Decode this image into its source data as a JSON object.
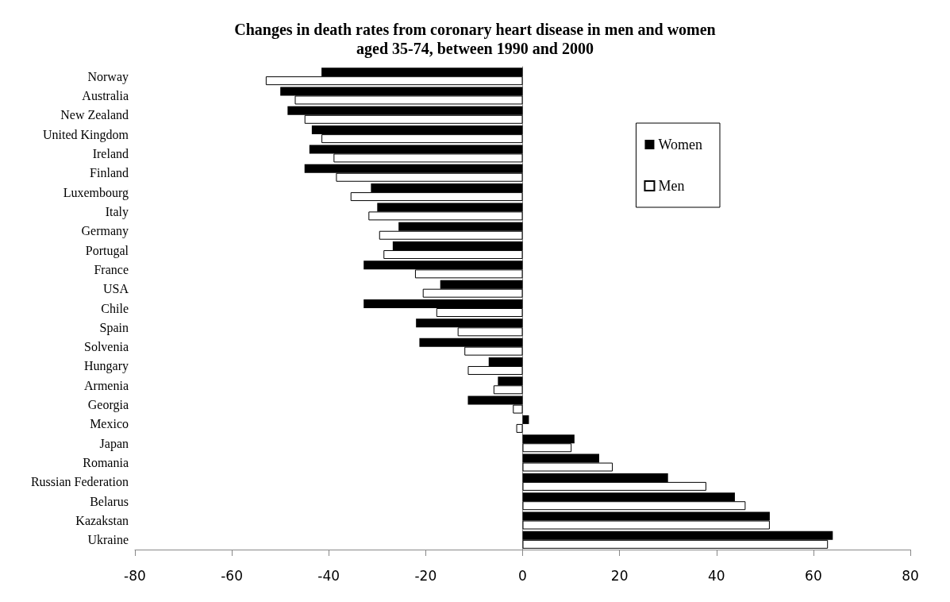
{
  "chart_data": {
    "type": "bar",
    "orientation": "horizontal",
    "title": "Changes in death rates from coronary heart disease in men and women\naged 35-74, between 1990 and 2000",
    "categories": [
      "Norway",
      "Australia",
      "New Zealand",
      "United Kingdom",
      "Ireland",
      "Finland",
      "Luxembourg",
      "Italy",
      "Germany",
      "Portugal",
      "France",
      "USA",
      "Chile",
      "Spain",
      "Solvenia",
      "Hungary",
      "Armenia",
      "Georgia",
      "Mexico",
      "Japan",
      "Romania",
      "Russian Federation",
      "Belarus",
      "Kazakstan",
      "Ukraine"
    ],
    "series": [
      {
        "name": "Women",
        "color": "#000000",
        "values": [
          -41.5,
          -50,
          -48.5,
          -43.5,
          -44,
          -45,
          -31.3,
          -30,
          -25.6,
          -26.8,
          -32.8,
          -17,
          -32.8,
          -22,
          -21.3,
          -7,
          -5.1,
          -11.3,
          1.3,
          10.7,
          15.8,
          30,
          43.8,
          51,
          64
        ]
      },
      {
        "name": "Men",
        "color": "#ffffff",
        "values": [
          -53,
          -47,
          -45,
          -41.5,
          -39,
          -38.5,
          -35.5,
          -31.8,
          -29.6,
          -28.7,
          -22.2,
          -20.6,
          -17.8,
          -13.4,
          -12,
          -11.3,
          -6,
          -2,
          -1.3,
          10.1,
          18.6,
          37.9,
          46,
          51,
          63
        ]
      }
    ],
    "xlim": [
      -80,
      80
    ],
    "xticks": [
      -80,
      -60,
      -40,
      -20,
      0,
      20,
      40,
      60,
      80
    ],
    "legend": "top right"
  }
}
